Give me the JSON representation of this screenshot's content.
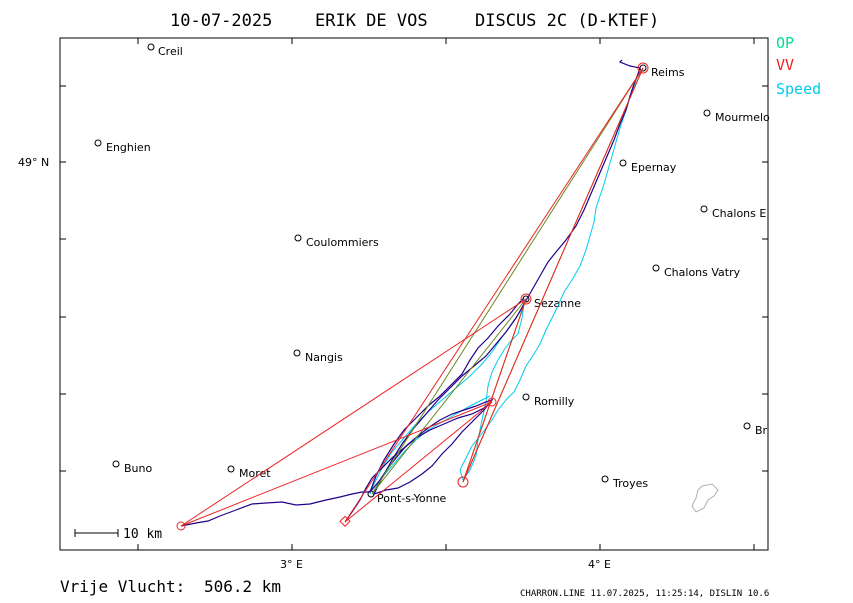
{
  "header": {
    "date": "10-07-2025",
    "pilot": "ERIK DE VOS",
    "glider": "DISCUS 2C (D-KTEF)"
  },
  "legend": [
    {
      "label": "OP",
      "color": "#00dd99"
    },
    {
      "label": "VV",
      "color": "#ee2222"
    },
    {
      "label": "Speed",
      "color": "#00ccee"
    }
  ],
  "axes": {
    "lat_label": "49° N",
    "lon_labels": [
      "3° E",
      "4° E"
    ]
  },
  "scale_label": "10 km",
  "footer": {
    "distance_label": "Vrije Vlucht:",
    "distance_value": "506.2 km",
    "credit": "CHARRON.LINE 11.07.2025, 11:25:14, DISLIN 10.6"
  },
  "places": [
    {
      "name": "Creil"
    },
    {
      "name": "Enghien"
    },
    {
      "name": "Coulommiers"
    },
    {
      "name": "Nangis"
    },
    {
      "name": "Buno"
    },
    {
      "name": "Moret"
    },
    {
      "name": "Pont-s-Yonne"
    },
    {
      "name": "Sezanne"
    },
    {
      "name": "Romilly"
    },
    {
      "name": "Troyes"
    },
    {
      "name": "Reims"
    },
    {
      "name": "Epernay"
    },
    {
      "name": "Mourmelo"
    },
    {
      "name": "Chalons E"
    },
    {
      "name": "Chalons Vatry"
    },
    {
      "name": "Br"
    }
  ],
  "colors": {
    "frame": "#000000",
    "track": "#22008a",
    "speed": "#00ccee",
    "op": "#6a8a22",
    "vv": "#ee2222",
    "lake": "#b0b0b0"
  }
}
